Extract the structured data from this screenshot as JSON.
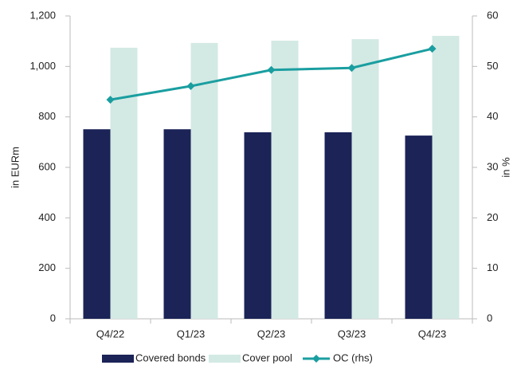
{
  "chart_data": {
    "type": "bar",
    "categories": [
      "Q4/22",
      "Q1/23",
      "Q2/23",
      "Q3/23",
      "Q4/23"
    ],
    "series": [
      {
        "name": "Covered bonds",
        "color": "#1b2357",
        "type": "bar",
        "values": [
          751,
          751,
          739,
          739,
          726
        ]
      },
      {
        "name": "Cover pool",
        "color": "#d3e9e4",
        "type": "bar",
        "values": [
          1074,
          1093,
          1102,
          1108,
          1121
        ]
      },
      {
        "name": "OC (rhs)",
        "color": "#1a9ea0",
        "type": "line",
        "axis": "y2",
        "values": [
          43.4,
          46.1,
          49.3,
          49.7,
          53.5
        ]
      }
    ],
    "ylabel": "in EURm",
    "y2label": "in %",
    "ylim": [
      0,
      1200
    ],
    "yticks": [
      0,
      200,
      400,
      600,
      800,
      {
        "value": 1000,
        "label": "1,000"
      },
      {
        "value": 1200,
        "label": "1,200"
      }
    ],
    "y2lim": [
      0,
      60
    ],
    "y2ticks": [
      0,
      10,
      20,
      30,
      40,
      50,
      60
    ],
    "legend": "bottom"
  }
}
